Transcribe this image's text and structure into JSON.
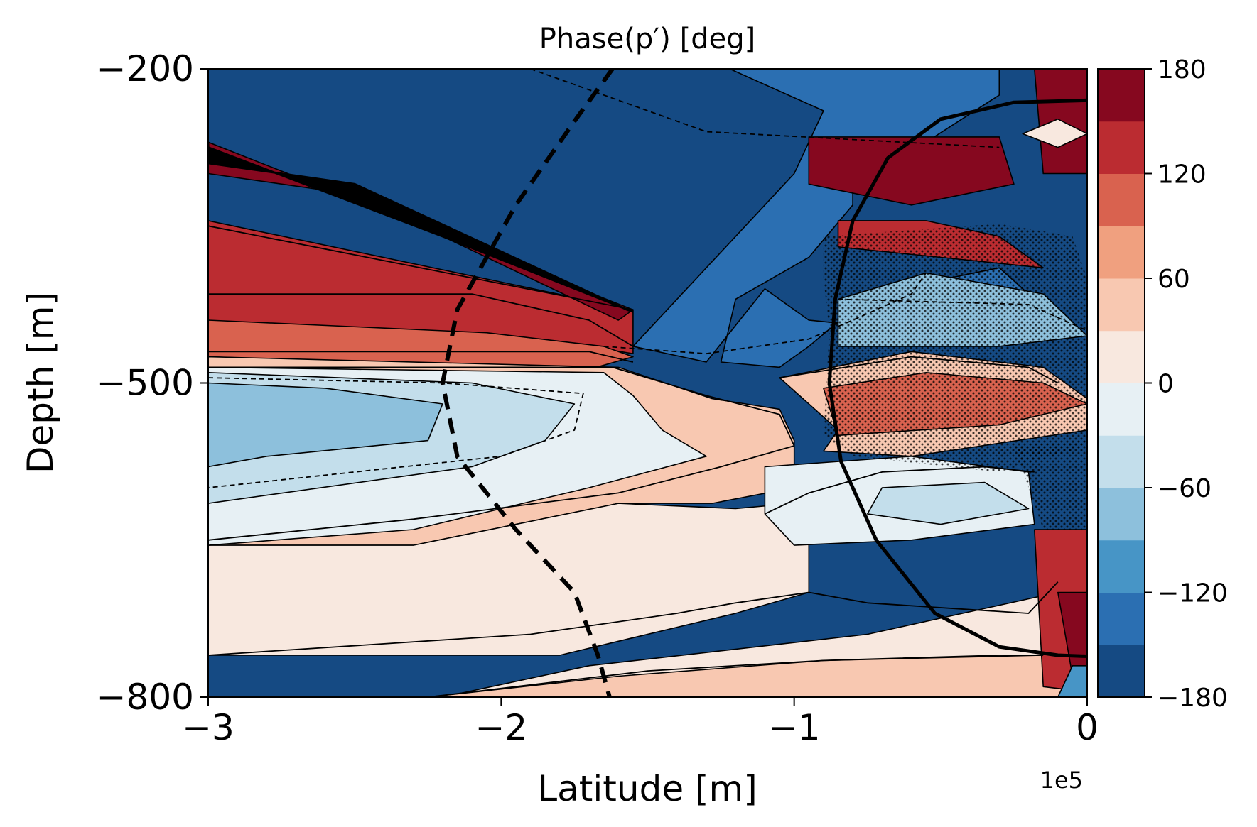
{
  "chart_data": {
    "type": "contourf",
    "title": "Phase(p′) [deg]",
    "xlabel": "Latitude [m]",
    "ylabel": "Depth [m]",
    "x_offset_text": "1e5",
    "xlim": [
      -3,
      0
    ],
    "ylim": [
      -800,
      -200
    ],
    "x_ticks": [
      -3,
      -2,
      -1,
      0
    ],
    "x_tick_labels": [
      "−3",
      "−2",
      "−1",
      "0"
    ],
    "y_ticks": [
      -200,
      -500,
      -800
    ],
    "y_tick_labels": [
      "−200",
      "−500",
      "−800"
    ],
    "colorbar": {
      "min": -180,
      "max": 180,
      "levels": [
        -180,
        -150,
        -120,
        -90,
        -60,
        -30,
        0,
        30,
        60,
        90,
        120,
        150,
        180
      ],
      "band_colors": [
        "#154a83",
        "#2b6fb2",
        "#4795c6",
        "#8dc0dc",
        "#c3deeb",
        "#e7f0f4",
        "#f8e8df",
        "#f8c8b1",
        "#f0a07f",
        "#d9624f",
        "#bb2c31",
        "#86081f"
      ],
      "ticks": [
        -180,
        -120,
        -60,
        0,
        60,
        120,
        180
      ],
      "tick_labels": [
        "−180",
        "−120",
        "−60",
        "0",
        "60",
        "120",
        "180"
      ]
    },
    "regions": [
      {
        "level": -165,
        "points": [
          [
            -3,
            -200
          ],
          [
            0,
            -200
          ],
          [
            0,
            -800
          ],
          [
            -3,
            -800
          ]
        ]
      },
      {
        "level": -135,
        "points": [
          [
            -1.9,
            -200
          ],
          [
            -0.3,
            -200
          ],
          [
            -0.3,
            -225
          ],
          [
            -0.55,
            -270
          ],
          [
            -0.8,
            -270
          ],
          [
            -0.8,
            -330
          ],
          [
            -0.95,
            -380
          ],
          [
            -1.2,
            -420
          ],
          [
            -1.25,
            -480
          ],
          [
            -1.05,
            -485
          ],
          [
            -0.95,
            -465
          ],
          [
            -0.8,
            -430
          ],
          [
            -0.65,
            -410
          ],
          [
            -0.3,
            -390
          ],
          [
            -0.18,
            -420
          ],
          [
            -0.6,
            -450
          ],
          [
            -0.95,
            -440
          ],
          [
            -1.1,
            -410
          ],
          [
            -1.3,
            -480
          ],
          [
            -1.55,
            -465
          ],
          [
            -1.0,
            -300
          ],
          [
            -0.9,
            -240
          ],
          [
            -1.3,
            -190
          ]
        ]
      },
      {
        "level": 135,
        "points": [
          [
            -3,
            -345
          ],
          [
            -1.55,
            -430
          ],
          [
            -1.55,
            -472
          ],
          [
            -1.7,
            -465
          ],
          [
            -2.05,
            -455
          ],
          [
            -3,
            -445
          ]
        ]
      },
      {
        "level": 105,
        "points": [
          [
            -3,
            -440
          ],
          [
            -2.05,
            -452
          ],
          [
            -1.65,
            -465
          ],
          [
            -1.55,
            -475
          ],
          [
            -1.7,
            -487
          ],
          [
            -3,
            -475
          ]
        ]
      },
      {
        "level": 45,
        "points": [
          [
            -3,
            -475
          ],
          [
            -1.6,
            -485
          ],
          [
            -1.28,
            -515
          ],
          [
            -1.05,
            -525
          ],
          [
            -1.0,
            -555
          ],
          [
            -1.0,
            -600
          ],
          [
            -1.28,
            -615
          ],
          [
            -1.6,
            -615
          ],
          [
            -2.3,
            -655
          ],
          [
            -3,
            -655
          ]
        ]
      },
      {
        "level": 15,
        "points": [
          [
            -3,
            -655
          ],
          [
            -2.3,
            -655
          ],
          [
            -1.6,
            -615
          ],
          [
            -1.2,
            -620
          ],
          [
            -1.0,
            -615
          ],
          [
            -0.95,
            -640
          ],
          [
            -0.95,
            -700
          ],
          [
            -1.2,
            -720
          ],
          [
            -1.8,
            -760
          ],
          [
            -3,
            -760
          ]
        ]
      },
      {
        "level": -15,
        "points": [
          [
            -3,
            -485
          ],
          [
            -1.65,
            -490
          ],
          [
            -1.55,
            -512
          ],
          [
            -1.45,
            -545
          ],
          [
            -1.3,
            -570
          ],
          [
            -1.7,
            -600
          ],
          [
            -2.3,
            -640
          ],
          [
            -3,
            -655
          ]
        ]
      },
      {
        "level": -45,
        "points": [
          [
            -3,
            -490
          ],
          [
            -2.1,
            -500
          ],
          [
            -1.75,
            -520
          ],
          [
            -1.85,
            -555
          ],
          [
            -2.1,
            -580
          ],
          [
            -3,
            -615
          ]
        ]
      },
      {
        "level": -75,
        "points": [
          [
            -3,
            -500
          ],
          [
            -2.6,
            -505
          ],
          [
            -2.2,
            -520
          ],
          [
            -2.25,
            -555
          ],
          [
            -2.8,
            -570
          ],
          [
            -3,
            -580
          ]
        ]
      },
      {
        "level": 45,
        "points": [
          [
            -1.05,
            -495
          ],
          [
            -0.6,
            -470
          ],
          [
            -0.15,
            -485
          ],
          [
            0,
            -515
          ],
          [
            0,
            -545
          ],
          [
            -0.6,
            -570
          ],
          [
            -0.9,
            -565
          ],
          [
            -0.85,
            -545
          ]
        ]
      },
      {
        "level": 105,
        "points": [
          [
            -0.9,
            -505
          ],
          [
            -0.55,
            -490
          ],
          [
            -0.15,
            -500
          ],
          [
            0,
            -520
          ],
          [
            -0.3,
            -540
          ],
          [
            -0.85,
            -550
          ]
        ]
      },
      {
        "level": -75,
        "points": [
          [
            -0.85,
            -420
          ],
          [
            -0.55,
            -395
          ],
          [
            -0.15,
            -415
          ],
          [
            0,
            -455
          ],
          [
            -0.3,
            -465
          ],
          [
            -0.85,
            -465
          ]
        ]
      },
      {
        "level": 135,
        "points": [
          [
            -0.85,
            -345
          ],
          [
            -0.55,
            -345
          ],
          [
            -0.3,
            -360
          ],
          [
            -0.15,
            -390
          ],
          [
            -0.5,
            -380
          ],
          [
            -0.85,
            -370
          ]
        ]
      },
      {
        "level": -15,
        "points": [
          [
            -1.1,
            -580
          ],
          [
            -0.6,
            -570
          ],
          [
            -0.2,
            -585
          ],
          [
            -0.18,
            -635
          ],
          [
            -0.6,
            -650
          ],
          [
            -1.0,
            -655
          ],
          [
            -1.1,
            -625
          ]
        ]
      },
      {
        "level": -45,
        "points": [
          [
            -0.7,
            -600
          ],
          [
            -0.35,
            -595
          ],
          [
            -0.2,
            -620
          ],
          [
            -0.5,
            -635
          ],
          [
            -0.75,
            -625
          ]
        ]
      },
      {
        "level": 15,
        "points": [
          [
            -0.75,
            -740
          ],
          [
            -0.1,
            -700
          ],
          [
            0,
            -700
          ],
          [
            0,
            -800
          ],
          [
            -2.2,
            -800
          ],
          [
            -1.7,
            -770
          ]
        ]
      },
      {
        "level": 45,
        "points": [
          [
            -2.25,
            -800
          ],
          [
            -1.6,
            -780
          ],
          [
            -0.9,
            -765
          ],
          [
            -0.15,
            -760
          ],
          [
            0,
            -760
          ],
          [
            0,
            -800
          ]
        ]
      },
      {
        "level": 135,
        "points": [
          [
            -0.18,
            -640
          ],
          [
            -0.05,
            -640
          ],
          [
            0,
            -640
          ],
          [
            0,
            -795
          ],
          [
            -0.15,
            -790
          ]
        ]
      },
      {
        "level": 165,
        "points": [
          [
            -0.1,
            -700
          ],
          [
            0,
            -700
          ],
          [
            0,
            -770
          ],
          [
            -0.05,
            -780
          ]
        ]
      },
      {
        "level": 165,
        "points": [
          [
            -0.18,
            -200
          ],
          [
            0,
            -200
          ],
          [
            0,
            -300
          ],
          [
            -0.15,
            -300
          ]
        ]
      },
      {
        "level": 165,
        "points": [
          [
            -3,
            -270
          ],
          [
            -1.55,
            -430
          ],
          [
            -1.6,
            -440
          ],
          [
            -2.5,
            -320
          ],
          [
            -3,
            -300
          ]
        ]
      },
      {
        "level": 165,
        "points": [
          [
            -0.95,
            -265
          ],
          [
            -0.3,
            -265
          ],
          [
            -0.25,
            -310
          ],
          [
            -0.6,
            -330
          ],
          [
            -0.95,
            -310
          ]
        ]
      },
      {
        "level": 15,
        "points": [
          [
            -0.22,
            -262
          ],
          [
            -0.1,
            -248
          ],
          [
            0,
            -262
          ],
          [
            -0.1,
            -275
          ]
        ]
      },
      {
        "level": -105,
        "points": [
          [
            -0.05,
            -770
          ],
          [
            0,
            -770
          ],
          [
            0,
            -800
          ],
          [
            -0.1,
            -800
          ]
        ]
      }
    ],
    "contours": [
      {
        "style": "dashed",
        "points": [
          [
            -1.9,
            -200
          ],
          [
            -1.3,
            -260
          ],
          [
            -0.3,
            -275
          ]
        ]
      },
      {
        "style": "dashed",
        "points": [
          [
            -1.65,
            -465
          ],
          [
            -1.3,
            -472
          ],
          [
            -0.95,
            -458
          ],
          [
            -0.8,
            -440
          ],
          [
            -0.6,
            -415
          ],
          [
            -0.55,
            -395
          ]
        ]
      },
      {
        "style": "dashed",
        "points": [
          [
            -3,
            -495
          ],
          [
            -2.2,
            -500
          ],
          [
            -1.72,
            -510
          ],
          [
            -1.75,
            -545
          ],
          [
            -2.0,
            -570
          ],
          [
            -3,
            -600
          ]
        ]
      },
      {
        "style": "dashed",
        "points": [
          [
            -0.85,
            -420
          ],
          [
            -0.2,
            -425
          ],
          [
            0,
            -450
          ]
        ]
      },
      {
        "style": "solid",
        "points": [
          [
            -3,
            -350
          ],
          [
            -1.55,
            -430
          ]
        ]
      },
      {
        "style": "solid",
        "points": [
          [
            -3,
            -415
          ],
          [
            -2.1,
            -415
          ],
          [
            -1.7,
            -440
          ],
          [
            -1.55,
            -465
          ]
        ]
      },
      {
        "style": "solid",
        "points": [
          [
            -3,
            -470
          ],
          [
            -1.7,
            -470
          ],
          [
            -1.55,
            -480
          ]
        ]
      },
      {
        "style": "solid",
        "points": [
          [
            -3,
            -485
          ],
          [
            -1.62,
            -485
          ],
          [
            -1.3,
            -512
          ],
          [
            -1.05,
            -530
          ],
          [
            -1.0,
            -560
          ],
          [
            -1.25,
            -580
          ],
          [
            -1.6,
            -605
          ],
          [
            -2.3,
            -630
          ],
          [
            -3,
            -650
          ]
        ]
      },
      {
        "style": "solid",
        "points": [
          [
            -3,
            -760
          ],
          [
            -1.9,
            -740
          ],
          [
            -1.4,
            -720
          ],
          [
            -1.2,
            -710
          ],
          [
            -0.95,
            -700
          ],
          [
            -0.75,
            -710
          ],
          [
            -0.2,
            -720
          ],
          [
            -0.1,
            -690
          ]
        ]
      },
      {
        "style": "solid",
        "points": [
          [
            -2.25,
            -800
          ],
          [
            -1.5,
            -775
          ],
          [
            -0.9,
            -765
          ],
          [
            -0.3,
            -760
          ],
          [
            -0.15,
            -760
          ]
        ]
      },
      {
        "style": "solid",
        "points": [
          [
            -1.1,
            -625
          ],
          [
            -0.95,
            -605
          ],
          [
            -0.7,
            -585
          ],
          [
            -0.35,
            -580
          ],
          [
            -0.18,
            -585
          ]
        ]
      },
      {
        "style": "solid",
        "points": [
          [
            -1.05,
            -495
          ],
          [
            -0.6,
            -475
          ],
          [
            -0.2,
            -485
          ],
          [
            -0.1,
            -500
          ]
        ]
      }
    ],
    "thick_dashed_curve": {
      "points": [
        [
          -1.62,
          -200
        ],
        [
          -1.75,
          -250
        ],
        [
          -1.95,
          -330
        ],
        [
          -2.15,
          -430
        ],
        [
          -2.2,
          -500
        ],
        [
          -2.15,
          -570
        ],
        [
          -1.95,
          -640
        ],
        [
          -1.75,
          -700
        ],
        [
          -1.67,
          -760
        ],
        [
          -1.63,
          -800
        ]
      ]
    },
    "thick_solid_curve": {
      "points": [
        [
          0,
          -230
        ],
        [
          -0.25,
          -232
        ],
        [
          -0.5,
          -248
        ],
        [
          -0.68,
          -285
        ],
        [
          -0.8,
          -345
        ],
        [
          -0.86,
          -420
        ],
        [
          -0.88,
          -500
        ],
        [
          -0.84,
          -575
        ],
        [
          -0.72,
          -650
        ],
        [
          -0.52,
          -720
        ],
        [
          -0.3,
          -752
        ],
        [
          -0.1,
          -760
        ],
        [
          0,
          -761
        ]
      ]
    },
    "thick_black_band": {
      "points": [
        [
          -3,
          -270
        ],
        [
          -3,
          -290
        ],
        [
          -2.5,
          -310
        ],
        [
          -1.57,
          -430
        ],
        [
          -1.55,
          -432
        ],
        [
          -2.2,
          -360
        ],
        [
          -3,
          -275
        ]
      ]
    },
    "stippled_regions": [
      {
        "points": [
          [
            -0.9,
            -360
          ],
          [
            -0.3,
            -348
          ],
          [
            -0.05,
            -360
          ],
          [
            0,
            -400
          ],
          [
            0,
            -560
          ],
          [
            -0.3,
            -585
          ],
          [
            -0.8,
            -570
          ],
          [
            -0.9,
            -550
          ],
          [
            -0.88,
            -450
          ],
          [
            -0.9,
            -400
          ]
        ]
      },
      {
        "points": [
          [
            -0.25,
            -560
          ],
          [
            0,
            -555
          ],
          [
            0,
            -640
          ],
          [
            -0.15,
            -640
          ]
        ]
      }
    ]
  }
}
